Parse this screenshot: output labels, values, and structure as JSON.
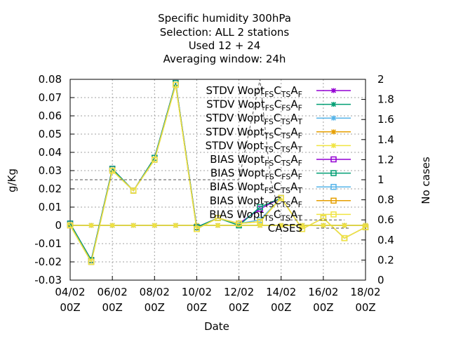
{
  "chart_data": {
    "type": "line",
    "title_lines": [
      "Specific humidity 300hPa",
      "Selection: ALL      2 stations",
      "Used  12 + 24",
      "Averaging window: 24h"
    ],
    "xlabel": "Date",
    "ylabel": "g/Kg",
    "y2label": "No cases",
    "ylim": [
      -0.03,
      0.08
    ],
    "y2lim": [
      0,
      2
    ],
    "xlim": [
      0,
      14
    ],
    "yticks": [
      "-0.03",
      "-0.02",
      "-0.01",
      "0",
      "0.01",
      "0.02",
      "0.03",
      "0.04",
      "0.05",
      "0.06",
      "0.07",
      "0.08"
    ],
    "y2ticks": [
      "0",
      "0.2",
      "0.4",
      "0.6",
      "0.8",
      "1",
      "1.2",
      "1.4",
      "1.6",
      "1.8",
      "2"
    ],
    "xticks": [
      {
        "x": 0,
        "line1": "04/02",
        "line2": "00Z"
      },
      {
        "x": 2,
        "line1": "06/02",
        "line2": "00Z"
      },
      {
        "x": 4,
        "line1": "08/02",
        "line2": "00Z"
      },
      {
        "x": 6,
        "line1": "10/02",
        "line2": "00Z"
      },
      {
        "x": 8,
        "line1": "12/02",
        "line2": "00Z"
      },
      {
        "x": 10,
        "line1": "14/02",
        "line2": "00Z"
      },
      {
        "x": 12,
        "line1": "16/02",
        "line2": "00Z"
      },
      {
        "x": 14,
        "line1": "18/02",
        "line2": "00Z"
      }
    ],
    "grid": true,
    "legend_position": "top-right",
    "series": [
      {
        "name": "STDV Wopt FS C TS A F",
        "color": "#9400d3",
        "marker": "star",
        "values": [
          [
            0,
            0
          ],
          [
            1,
            0
          ],
          [
            2,
            0
          ],
          [
            3,
            0
          ],
          [
            4,
            0
          ],
          [
            5,
            0
          ],
          [
            6,
            0
          ],
          [
            7,
            0
          ],
          [
            8,
            0
          ],
          [
            9,
            0
          ],
          [
            10,
            0
          ],
          [
            11,
            0
          ],
          [
            12,
            0
          ],
          [
            13,
            0
          ],
          [
            14,
            0
          ]
        ]
      },
      {
        "name": "STDV Wopt FS C FS A F",
        "color": "#009e73",
        "marker": "star",
        "values": [
          [
            0,
            0
          ],
          [
            1,
            0
          ],
          [
            2,
            0
          ],
          [
            3,
            0
          ],
          [
            4,
            0
          ],
          [
            5,
            0
          ],
          [
            6,
            0
          ],
          [
            7,
            0
          ],
          [
            8,
            0
          ],
          [
            9,
            0
          ],
          [
            10,
            0
          ],
          [
            11,
            0
          ],
          [
            12,
            0
          ],
          [
            13,
            0
          ],
          [
            14,
            0
          ]
        ]
      },
      {
        "name": "STDV Wopt FS C TS A T",
        "color": "#56b4e9",
        "marker": "star",
        "values": [
          [
            0,
            0
          ],
          [
            1,
            0
          ],
          [
            2,
            0
          ],
          [
            3,
            0
          ],
          [
            4,
            0
          ],
          [
            5,
            0
          ],
          [
            6,
            0
          ],
          [
            7,
            0
          ],
          [
            8,
            0
          ],
          [
            9,
            0
          ],
          [
            10,
            0
          ],
          [
            11,
            0
          ],
          [
            12,
            0
          ],
          [
            13,
            0
          ],
          [
            14,
            0
          ]
        ]
      },
      {
        "name": "STDV Wopt TS C TS A F",
        "color": "#e69f00",
        "marker": "star",
        "values": [
          [
            0,
            0
          ],
          [
            1,
            0
          ],
          [
            2,
            0
          ],
          [
            3,
            0
          ],
          [
            4,
            0
          ],
          [
            5,
            0
          ],
          [
            6,
            0
          ],
          [
            7,
            0
          ],
          [
            8,
            0
          ],
          [
            9,
            0
          ],
          [
            10,
            0
          ],
          [
            11,
            0
          ],
          [
            12,
            0
          ],
          [
            13,
            0
          ],
          [
            14,
            0
          ]
        ]
      },
      {
        "name": "STDV Wopt TS C TS A T",
        "color": "#f0e442",
        "marker": "star",
        "values": [
          [
            0,
            0
          ],
          [
            1,
            0
          ],
          [
            2,
            0
          ],
          [
            3,
            0
          ],
          [
            4,
            0
          ],
          [
            5,
            0
          ],
          [
            6,
            0
          ],
          [
            7,
            0
          ],
          [
            8,
            0
          ],
          [
            9,
            0
          ],
          [
            10,
            0
          ],
          [
            11,
            0
          ],
          [
            12,
            0
          ],
          [
            13,
            0
          ],
          [
            14,
            0
          ]
        ]
      },
      {
        "name": "BIAS Wopt FS C TS A F",
        "color": "#9400d3",
        "marker": "square",
        "values": [
          [
            0,
            0.001
          ],
          [
            1,
            -0.019
          ],
          [
            2,
            0.031
          ],
          [
            3,
            0.019
          ],
          [
            4,
            0.037
          ],
          [
            5,
            0.078
          ],
          [
            6,
            -0.001
          ],
          [
            7,
            0.004
          ],
          [
            8,
            0.001
          ],
          [
            9,
            0.009
          ],
          [
            10,
            0.015
          ]
        ]
      },
      {
        "name": "BIAS Wopt FS C FS A F",
        "color": "#009e73",
        "marker": "square",
        "values": [
          [
            0,
            0.001
          ],
          [
            1,
            -0.019
          ],
          [
            2,
            0.031
          ],
          [
            3,
            0.019
          ],
          [
            4,
            0.037
          ],
          [
            5,
            0.078
          ],
          [
            6,
            -0.001
          ],
          [
            7,
            0.004
          ],
          [
            8,
            0.0
          ],
          [
            9,
            0.01
          ],
          [
            10,
            0.015
          ]
        ]
      },
      {
        "name": "BIAS Wopt FS C TS A T",
        "color": "#56b4e9",
        "marker": "square",
        "values": [
          [
            0,
            0.0
          ],
          [
            1,
            -0.02
          ],
          [
            2,
            0.03
          ],
          [
            3,
            0.019
          ],
          [
            4,
            0.036
          ],
          [
            5,
            0.077
          ],
          [
            6,
            -0.002
          ],
          [
            7,
            0.004
          ],
          [
            8,
            0.001
          ],
          [
            9,
            0.003
          ],
          [
            10,
            0.015
          ],
          [
            11,
            -0.002
          ],
          [
            12,
            0.004
          ],
          [
            13,
            -0.007
          ],
          [
            14,
            -0.001
          ]
        ]
      },
      {
        "name": "BIAS Wopt TS C TS A F",
        "color": "#e69f00",
        "marker": "square",
        "values": [
          [
            0,
            0.0
          ],
          [
            1,
            -0.02
          ],
          [
            2,
            0.03
          ],
          [
            3,
            0.019
          ],
          [
            4,
            0.036
          ],
          [
            5,
            0.077
          ],
          [
            6,
            -0.002
          ],
          [
            7,
            0.004
          ],
          [
            8,
            0.001
          ],
          [
            9,
            0.002
          ],
          [
            10,
            0.015
          ],
          [
            11,
            -0.002
          ],
          [
            12,
            0.004
          ],
          [
            13,
            -0.007
          ],
          [
            14,
            -0.001
          ]
        ]
      },
      {
        "name": "BIAS Wopt TS C TS A T",
        "color": "#f0e442",
        "marker": "square",
        "values": [
          [
            0,
            0.0
          ],
          [
            1,
            -0.02
          ],
          [
            2,
            0.03
          ],
          [
            3,
            0.019
          ],
          [
            4,
            0.036
          ],
          [
            5,
            0.077
          ],
          [
            6,
            -0.002
          ],
          [
            7,
            0.004
          ],
          [
            8,
            0.001
          ],
          [
            9,
            0.002
          ],
          [
            10,
            0.015
          ],
          [
            11,
            -0.002
          ],
          [
            12,
            0.004
          ],
          [
            13,
            -0.007
          ],
          [
            14,
            -0.001
          ]
        ]
      },
      {
        "name": "CASES",
        "color": "#555555",
        "marker": "none",
        "dashed": true,
        "axis": "y2",
        "values": [
          [
            0,
            1
          ],
          [
            8,
            1
          ],
          [
            9,
            2
          ],
          [
            9.5,
            1
          ],
          [
            10,
            0.6
          ],
          [
            13,
            0.6
          ]
        ]
      }
    ],
    "legend": [
      {
        "prefix": "STDV Wopt",
        "subs": [
          "FS",
          "C",
          "TS",
          "A",
          "F"
        ],
        "color": "#9400d3",
        "marker": "star"
      },
      {
        "prefix": "STDV Wopt",
        "subs": [
          "FS",
          "C",
          "FS",
          "A",
          "F"
        ],
        "color": "#009e73",
        "marker": "star"
      },
      {
        "prefix": "STDV Wopt",
        "subs": [
          "FS",
          "C",
          "TS",
          "A",
          "T"
        ],
        "color": "#56b4e9",
        "marker": "star"
      },
      {
        "prefix": "STDV Wopt",
        "subs": [
          "TS",
          "C",
          "TS",
          "A",
          "F"
        ],
        "color": "#e69f00",
        "marker": "star"
      },
      {
        "prefix": "STDV Wopt",
        "subs": [
          "TS",
          "C",
          "TS",
          "A",
          "T"
        ],
        "color": "#f0e442",
        "marker": "star"
      },
      {
        "prefix": "BIAS Wopt",
        "subs": [
          "FS",
          "C",
          "TS",
          "A",
          "F"
        ],
        "color": "#9400d3",
        "marker": "square"
      },
      {
        "prefix": "BIAS Wopt",
        "subs": [
          "FS",
          "C",
          "FS",
          "A",
          "F"
        ],
        "color": "#009e73",
        "marker": "square"
      },
      {
        "prefix": "BIAS Wopt",
        "subs": [
          "FS",
          "C",
          "TS",
          "A",
          "T"
        ],
        "color": "#56b4e9",
        "marker": "square"
      },
      {
        "prefix": "BIAS Wopt",
        "subs": [
          "TS",
          "C",
          "TS",
          "A",
          "F"
        ],
        "color": "#e69f00",
        "marker": "square"
      },
      {
        "prefix": "BIAS Wopt",
        "subs": [
          "TS",
          "C",
          "TS",
          "A",
          "T"
        ],
        "color": "#f0e442",
        "marker": "square"
      },
      {
        "prefix": "CASES",
        "subs": [],
        "color": "#555555",
        "marker": "dashed"
      }
    ]
  }
}
